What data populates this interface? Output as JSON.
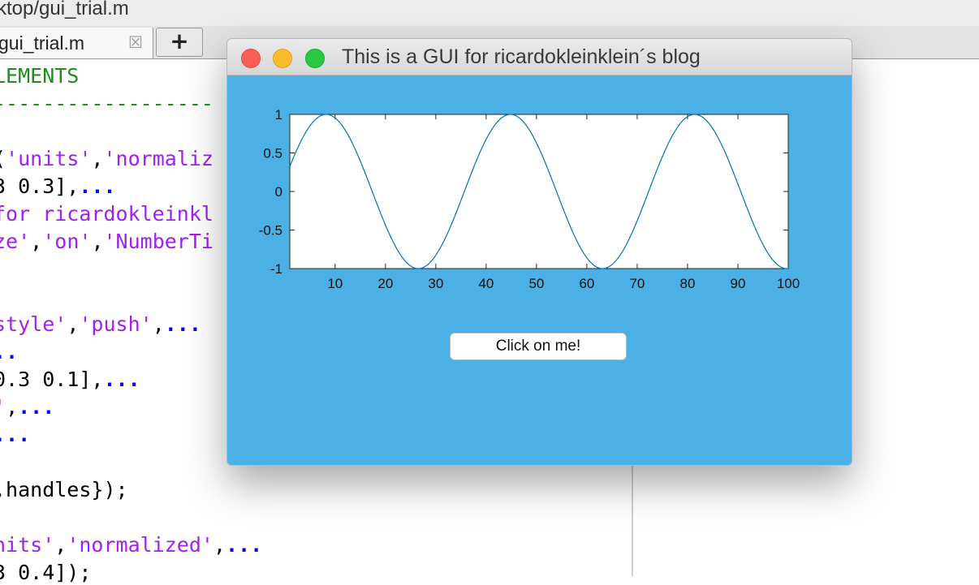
{
  "editor": {
    "path_fragment": "ktop/gui_trial.m",
    "tab_label": "gui_trial.m",
    "tab_close_icon": "close-icon",
    "tab_add_label": "+",
    "code_lines": [
      {
        "parts": [
          {
            "t": "LEMENTS",
            "c": "g"
          }
        ]
      },
      {
        "parts": [
          {
            "t": "------------------",
            "c": "g"
          }
        ]
      },
      {
        "parts": []
      },
      {
        "parts": [
          {
            "t": "(",
            "c": "k"
          },
          {
            "t": "'units'",
            "c": "p"
          },
          {
            "t": ",",
            "c": "k"
          },
          {
            "t": "'normaliz",
            "c": "p"
          }
        ]
      },
      {
        "parts": [
          {
            "t": "3 0.3],",
            "c": "k"
          },
          {
            "t": "...",
            "c": "b"
          }
        ]
      },
      {
        "parts": [
          {
            "t": "for ricardokleinkl",
            "c": "p"
          }
        ]
      },
      {
        "parts": [
          {
            "t": "ze'",
            "c": "p"
          },
          {
            "t": ",",
            "c": "k"
          },
          {
            "t": "'on'",
            "c": "p"
          },
          {
            "t": ",",
            "c": "k"
          },
          {
            "t": "'NumberTi",
            "c": "p"
          }
        ]
      },
      {
        "parts": []
      },
      {
        "parts": []
      },
      {
        "parts": [
          {
            "t": "style'",
            "c": "p"
          },
          {
            "t": ",",
            "c": "k"
          },
          {
            "t": "'push'",
            "c": "p"
          },
          {
            "t": ",",
            "c": "k"
          },
          {
            "t": "...",
            "c": "b"
          }
        ]
      },
      {
        "parts": [
          {
            "t": "..",
            "c": "b"
          }
        ]
      },
      {
        "parts": [
          {
            "t": "0.3 0.1],",
            "c": "k"
          },
          {
            "t": "...",
            "c": "b"
          }
        ]
      },
      {
        "parts": [
          {
            "t": "'",
            "c": "p"
          },
          {
            "t": ",",
            "c": "k"
          },
          {
            "t": "...",
            "c": "b"
          }
        ]
      },
      {
        "parts": [
          {
            "t": "...",
            "c": "b"
          }
        ]
      },
      {
        "parts": []
      },
      {
        "parts": [
          {
            "t": ",handles});",
            "c": "k"
          }
        ]
      },
      {
        "parts": []
      },
      {
        "parts": [
          {
            "t": "nits'",
            "c": "p"
          },
          {
            "t": ",",
            "c": "k"
          },
          {
            "t": "'normalized'",
            "c": "p"
          },
          {
            "t": ",",
            "c": "k"
          },
          {
            "t": "...",
            "c": "b"
          }
        ]
      },
      {
        "parts": [
          {
            "t": "3 0.4]);",
            "c": "k"
          }
        ]
      }
    ]
  },
  "figure": {
    "title": "This is a GUI for ricardokleinklein´s blog",
    "background_color": "#4bb0e6",
    "button_label": "Click on me!"
  },
  "chart_data": {
    "type": "line",
    "series": [
      {
        "function": "sin(2*pi*x/36.6 + 0.16)",
        "x_start": 1,
        "x_end": 100,
        "color": "#0072bd"
      }
    ],
    "xlim": [
      1,
      100
    ],
    "ylim": [
      -1,
      1
    ],
    "xticks": [
      10,
      20,
      30,
      40,
      50,
      60,
      70,
      80,
      90,
      100
    ],
    "yticks": [
      -1,
      -0.5,
      0,
      0.5,
      1
    ],
    "xtick_labels": [
      "10",
      "20",
      "30",
      "40",
      "50",
      "60",
      "70",
      "80",
      "90",
      "100"
    ],
    "ytick_labels": [
      "-1",
      "-0.5",
      "0",
      "0.5",
      "1"
    ],
    "grid": false,
    "title": "",
    "xlabel": "",
    "ylabel": ""
  }
}
